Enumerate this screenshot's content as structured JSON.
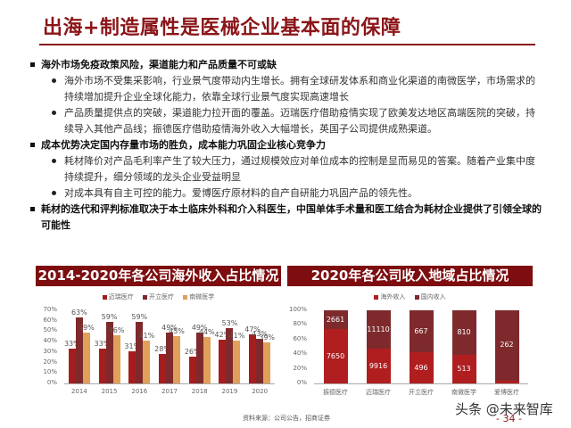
{
  "page": {
    "title": "出海+制造属性是医械企业基本面的保障",
    "source": "资料来源：公司公告，招商证券",
    "watermark": "头条 @未来智库",
    "page_number": "- 34 -"
  },
  "sections": [
    {
      "heading": "海外市场免疫政策风险，渠道能力和产品质量不可或缺",
      "bullets": [
        [
          "海外市场不受集采影响，行业景气度带动内生增长。拥有全球研发体系和商业化渠道的南微医学，市场需求的",
          "持续增加提升企业全球化能力，依靠全球行业景气度实现高速增长"
        ],
        [
          "产品质量提供点的突破，渠道能力拉开面的覆盖。迈瑞医疗借助疫情实现了欧美发达地区高端医院的突破，持",
          "续导入其他产品线；振德医疗借助疫情海外收入大幅增长，英国子公司提供成熟渠道。"
        ]
      ]
    },
    {
      "heading": "成本优势决定国内存量市场的胜负，成本能力巩固企业核心竞争力",
      "bullets": [
        [
          "耗材降价对产品毛利率产生了较大压力，通过规模效应对单位成本的控制是显而易见的答案。随着产业集中度",
          "持续提升，细分领域的龙头企业受益明显"
        ],
        [
          "对成本具有自主可控的能力。爱博医疗原材料的自产自研能力巩固产品的领先性。"
        ]
      ]
    },
    {
      "heading_lines": [
        "耗材的迭代和评判标准取决于本土临床外科和介入科医生，中国单体手术量和医工结合为耗材企业提供了引领全球的",
        "可能性"
      ]
    }
  ],
  "chart_data": [
    {
      "type": "bar",
      "title": "2014-2020年各公司海外收入占比情况",
      "categories": [
        "2014",
        "2015",
        "2016",
        "2017",
        "2018",
        "2019",
        "2020"
      ],
      "series": [
        {
          "name": "迈瑞医疗",
          "color": "#a51d1f",
          "values": [
            33,
            33,
            31,
            28,
            26,
            42,
            47
          ]
        },
        {
          "name": "开立医疗",
          "color": "#7e2a2c",
          "values": [
            63,
            59,
            59,
            49,
            49,
            53,
            43
          ]
        },
        {
          "name": "南微医学",
          "color": "#e0a05a",
          "values": [
            49,
            46,
            41,
            45,
            44,
            41,
            39
          ]
        }
      ],
      "value_labels": [
        [
          "33%",
          "33%",
          "31%",
          "28%",
          "26%",
          "42%",
          "47%"
        ],
        [
          "63%",
          "59%",
          "59%",
          "49%",
          "49%",
          "53%",
          "43%"
        ],
        [
          "49%",
          "46%",
          "41%",
          "45%",
          "44%",
          "41%",
          "39%"
        ]
      ],
      "yticks": [
        "0%",
        "10%",
        "20%",
        "30%",
        "40%",
        "50%",
        "60%",
        "70%"
      ],
      "ylim": [
        0,
        70
      ],
      "xlabel": "",
      "ylabel": "",
      "legend_position": "top"
    },
    {
      "type": "bar",
      "stacked": true,
      "percent": true,
      "title": "2020年各公司收入地域占比情况",
      "categories": [
        "振德医疗",
        "迈瑞医疗",
        "开立医疗",
        "南微医学",
        "爱博医疗"
      ],
      "series": [
        {
          "name": "海外收入",
          "color": "#b01e20",
          "values": [
            7650,
            9916,
            496,
            513,
            10
          ]
        },
        {
          "name": "国内收入",
          "color": "#7e2a2c",
          "values": [
            2661,
            11110,
            667,
            810,
            262
          ]
        }
      ],
      "yticks": [
        "0%",
        "20%",
        "40%",
        "60%",
        "80%",
        "100%"
      ],
      "ylim": [
        0,
        100
      ],
      "xlabel": "",
      "ylabel": "",
      "legend_position": "top"
    }
  ]
}
